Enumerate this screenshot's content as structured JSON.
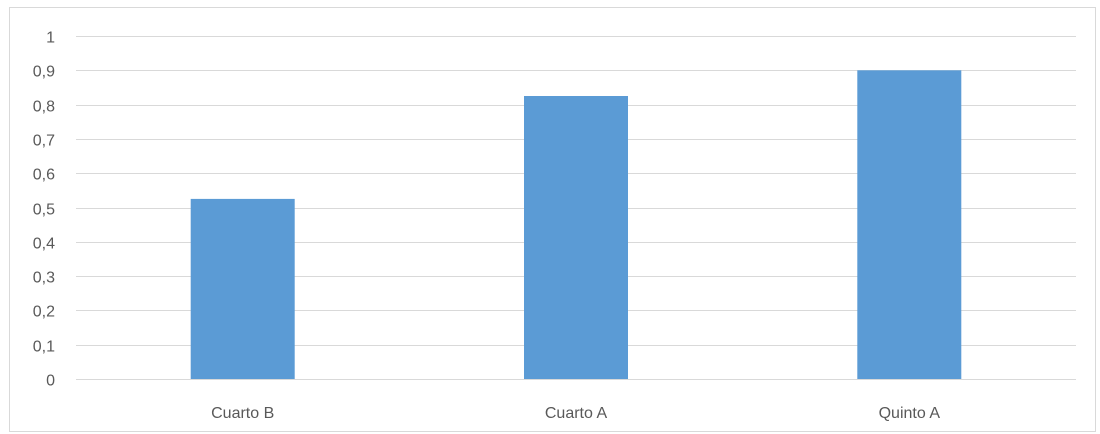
{
  "chart_data": {
    "type": "bar",
    "title": "",
    "xlabel": "",
    "ylabel": "",
    "categories": [
      "Cuarto B",
      "Cuarto A",
      "Quinto A"
    ],
    "values": [
      0.525,
      0.825,
      0.9
    ],
    "ylim": [
      0,
      1
    ],
    "yticks": [
      "0",
      "0,1",
      "0,2",
      "0,3",
      "0,4",
      "0,5",
      "0,6",
      "0,7",
      "0,8",
      "0,9",
      "1"
    ],
    "grid": true,
    "legend": false,
    "colors": {
      "bar": "#5b9bd5",
      "grid": "#d9d9d9",
      "axis": "#d9d9d9",
      "text": "#595959"
    }
  }
}
